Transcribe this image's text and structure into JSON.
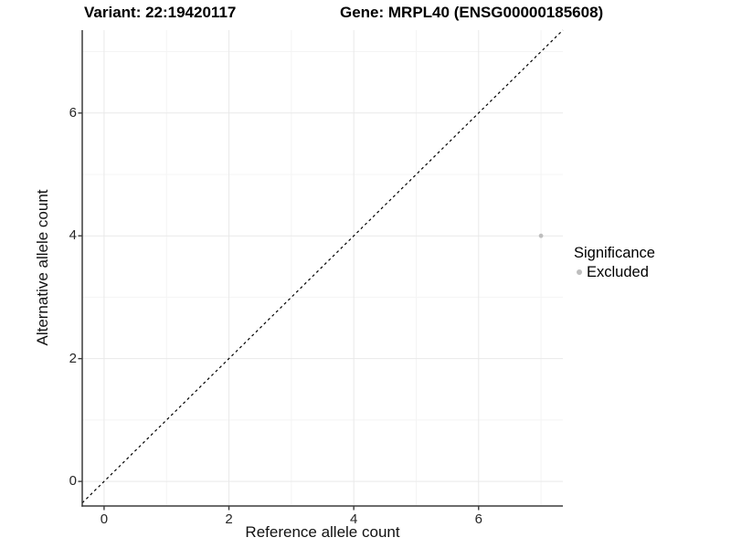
{
  "chart_data": {
    "type": "scatter",
    "titles": {
      "left": "Variant: 22:19420117",
      "right": "Gene: MRPL40 (ENSG00000185608)"
    },
    "xlabel": "Reference allele count",
    "ylabel": "Alternative allele count",
    "x_ticks": [
      0,
      2,
      4,
      6
    ],
    "y_ticks": [
      0,
      2,
      4,
      6
    ],
    "x_minor": [
      1,
      3,
      5,
      7
    ],
    "y_minor": [
      1,
      3,
      5,
      7
    ],
    "xlim": [
      -0.35,
      7.35
    ],
    "ylim": [
      -0.4,
      7.35
    ],
    "grid": true,
    "series": [
      {
        "name": "Excluded",
        "color": "#bebebe",
        "points": [
          {
            "x": 7,
            "y": 4
          }
        ]
      }
    ],
    "reference_line": {
      "type": "identity y=x",
      "style": "dashed",
      "color": "#000000"
    },
    "legend": {
      "title": "Significance",
      "position": "right",
      "items": [
        {
          "label": "Excluded",
          "color": "#bebebe"
        }
      ]
    }
  },
  "colors": {
    "background": "#ffffff",
    "grid_major": "#e9e9e9",
    "grid_minor": "#f4f4f4",
    "axis_line": "#3b3b3b",
    "tick_mark": "#3b3b3b"
  }
}
